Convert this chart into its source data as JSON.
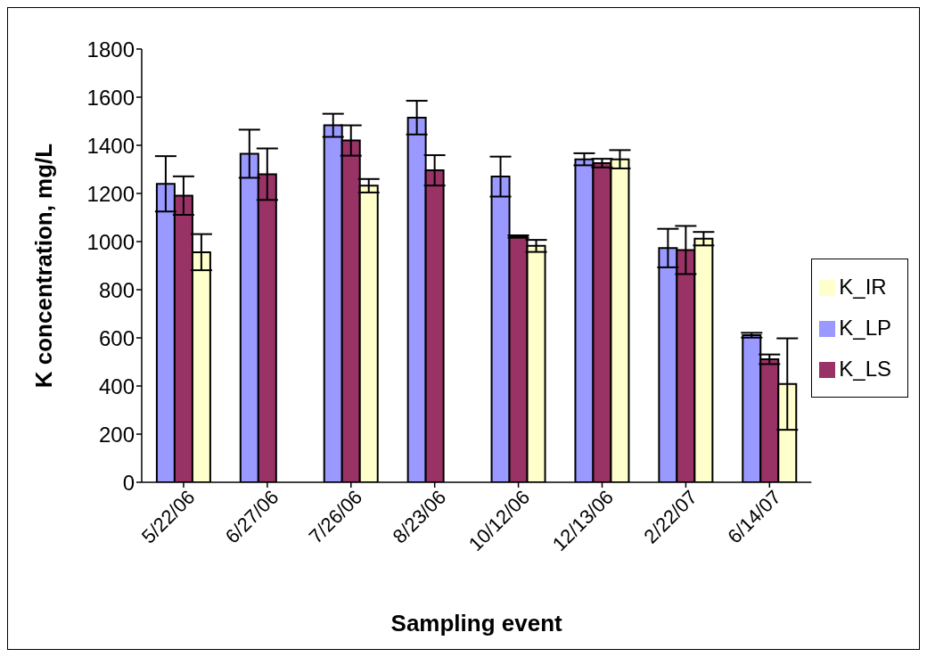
{
  "chart_data": {
    "type": "bar",
    "xlabel": "Sampling event",
    "ylabel": "K concentration, mg/L",
    "categories": [
      "5/22/06",
      "6/27/06",
      "7/26/06",
      "8/23/06",
      "10/12/06",
      "12/13/06",
      "2/22/07",
      "6/14/07"
    ],
    "series": [
      {
        "name": "K_LP",
        "color": "#9999ff",
        "values": [
          1240,
          1365,
          1483,
          1515,
          1270,
          1342,
          973,
          611
        ],
        "errors": [
          115,
          100,
          48,
          70,
          83,
          25,
          80,
          10
        ]
      },
      {
        "name": "K_LS",
        "color": "#993366",
        "values": [
          1191,
          1280,
          1420,
          1296,
          1021,
          1326,
          965,
          511
        ],
        "errors": [
          80,
          107,
          63,
          63,
          5,
          18,
          100,
          20
        ]
      },
      {
        "name": "K_IR",
        "color": "#ffffcc",
        "values": [
          956,
          null,
          1232,
          null,
          982,
          1342,
          1012,
          408
        ],
        "errors": [
          75,
          null,
          28,
          null,
          25,
          38,
          28,
          190
        ]
      }
    ],
    "ylim": [
      0,
      1800
    ],
    "yticks": [
      0,
      200,
      400,
      600,
      800,
      1000,
      1200,
      1400,
      1600,
      1800
    ],
    "grid": false,
    "legend": "right"
  }
}
